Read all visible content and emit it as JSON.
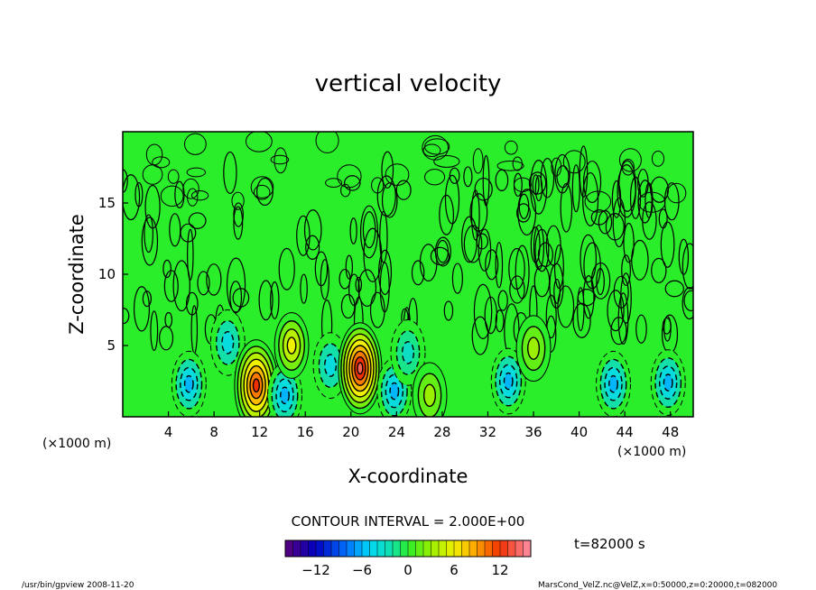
{
  "chart_data": {
    "type": "heatmap",
    "title": "vertical velocity",
    "xlabel": "X-coordinate",
    "ylabel": "Z-coordinate",
    "x_unit": "(×1000 m)",
    "y_unit": "(×1000 m)",
    "xlim": [
      0,
      50
    ],
    "ylim": [
      0,
      20
    ],
    "x_ticks": [
      4,
      8,
      12,
      16,
      20,
      24,
      28,
      32,
      36,
      40,
      44,
      48
    ],
    "y_ticks": [
      5,
      10,
      15
    ],
    "contour_interval_label": "CONTOUR INTERVAL = 2.000E+00",
    "time_label": "t=82000 s",
    "colorbar": {
      "min": -16,
      "max": 16,
      "ticks": [
        -12,
        -6,
        0,
        6,
        12
      ]
    },
    "field_centers": [
      {
        "x": 5.8,
        "z": 2.3,
        "value": -6
      },
      {
        "x": 9.2,
        "z": 5.2,
        "value": -4
      },
      {
        "x": 11.7,
        "z": 2.2,
        "value": 12
      },
      {
        "x": 14.2,
        "z": 1.5,
        "value": -6
      },
      {
        "x": 14.8,
        "z": 5.0,
        "value": 6
      },
      {
        "x": 18.2,
        "z": 3.6,
        "value": -4
      },
      {
        "x": 20.8,
        "z": 3.4,
        "value": 14
      },
      {
        "x": 23.8,
        "z": 1.8,
        "value": -6
      },
      {
        "x": 25.0,
        "z": 4.5,
        "value": -3
      },
      {
        "x": 26.9,
        "z": 1.5,
        "value": 3
      },
      {
        "x": 33.8,
        "z": 2.5,
        "value": -6
      },
      {
        "x": 36.0,
        "z": 4.8,
        "value": 3
      },
      {
        "x": 43.0,
        "z": 2.3,
        "value": -6
      },
      {
        "x": 47.8,
        "z": 2.4,
        "value": -6
      }
    ],
    "grid": false
  },
  "footer": {
    "left": "/usr/bin/gpview   2008-11-20",
    "right": "MarsCond_VelZ.nc@VelZ,x=0:50000,z=0:20000,t=082000"
  }
}
